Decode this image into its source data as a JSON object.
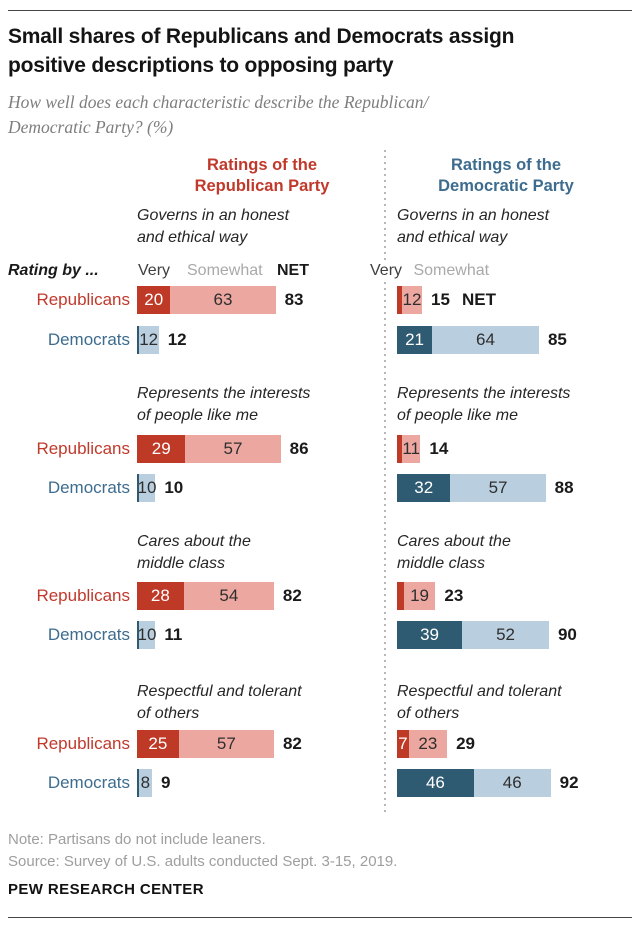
{
  "page": {
    "title_lines": [
      "Small shares of Republicans and Democrats assign",
      "positive descriptions to opposing party"
    ],
    "subtitle_lines": [
      "How well does each characteristic describe the Republican/",
      "Democratic Party? (%)"
    ],
    "note": "Note: Partisans do not include leaners.",
    "source": "Source: Survey of U.S. adults conducted Sept. 3-15, 2019.",
    "brand": "PEW RESEARCH CENTER"
  },
  "labels": {
    "rating_by": "Rating by ...",
    "very": "Very",
    "somewhat": "Somewhat",
    "net": "NET"
  },
  "colors": {
    "republican_dark": "#bf3927",
    "republican_light": "#eca8a0",
    "democrat_dark": "#2e5a72",
    "democrat_light": "#b9cfdf",
    "republican_label": "#c0392b",
    "democrat_label": "#3d6c8e"
  },
  "chart_data": {
    "type": "bar",
    "unit": "%",
    "title": "Small shares of Republicans and Democrats assign positive descriptions to opposing party",
    "subtitle": "How well does each characteristic describe the Republican/Democratic Party? (%)",
    "stack_keys": [
      "very",
      "somewhat"
    ],
    "legend": [
      "Very",
      "Somewhat",
      "NET"
    ],
    "panels": [
      {
        "id": "ratings-of-republican-party",
        "header_lines": [
          "Ratings of the",
          "Republican Party"
        ],
        "sections": [
          {
            "title_lines": [
              "Governs in an honest",
              "and ethical way"
            ],
            "rows": [
              {
                "rater": "Republicans",
                "very": 20,
                "somewhat": 63,
                "net": 83,
                "show_very": true,
                "show_somewhat": true
              },
              {
                "rater": "Democrats",
                "very": 1,
                "somewhat": 12,
                "net": 12,
                "show_very": false,
                "show_somewhat": true
              }
            ]
          },
          {
            "title_lines": [
              "Represents the interests",
              "of people like me"
            ],
            "rows": [
              {
                "rater": "Republicans",
                "very": 29,
                "somewhat": 57,
                "net": 86,
                "show_very": true,
                "show_somewhat": true
              },
              {
                "rater": "Democrats",
                "very": 1,
                "somewhat": 10,
                "net": 10,
                "show_very": false,
                "show_somewhat": true
              }
            ]
          },
          {
            "title_lines": [
              "Cares about the",
              "middle class"
            ],
            "rows": [
              {
                "rater": "Republicans",
                "very": 28,
                "somewhat": 54,
                "net": 82,
                "show_very": true,
                "show_somewhat": true
              },
              {
                "rater": "Democrats",
                "very": 1,
                "somewhat": 10,
                "net": 11,
                "show_very": false,
                "show_somewhat": true
              }
            ]
          },
          {
            "title_lines": [
              "Respectful and tolerant",
              "of others"
            ],
            "rows": [
              {
                "rater": "Republicans",
                "very": 25,
                "somewhat": 57,
                "net": 82,
                "show_very": true,
                "show_somewhat": true
              },
              {
                "rater": "Democrats",
                "very": 1,
                "somewhat": 8,
                "net": 9,
                "show_very": false,
                "show_somewhat": true
              }
            ]
          }
        ]
      },
      {
        "id": "ratings-of-democratic-party",
        "header_lines": [
          "Ratings of the",
          "Democratic Party"
        ],
        "sections": [
          {
            "title_lines": [
              "Governs in an honest",
              "and ethical way"
            ],
            "rows": [
              {
                "rater": "Republicans",
                "very": 3,
                "somewhat": 12,
                "net": 15,
                "show_very": false,
                "show_somewhat": true,
                "net_suffix": "NET"
              },
              {
                "rater": "Democrats",
                "very": 21,
                "somewhat": 64,
                "net": 85,
                "show_very": true,
                "show_somewhat": true
              }
            ]
          },
          {
            "title_lines": [
              "Represents the interests",
              "of people like me"
            ],
            "rows": [
              {
                "rater": "Republicans",
                "very": 3,
                "somewhat": 11,
                "net": 14,
                "show_very": false,
                "show_somewhat": true
              },
              {
                "rater": "Democrats",
                "very": 32,
                "somewhat": 57,
                "net": 88,
                "show_very": true,
                "show_somewhat": true
              }
            ]
          },
          {
            "title_lines": [
              "Cares about the",
              "middle class"
            ],
            "rows": [
              {
                "rater": "Republicans",
                "very": 4,
                "somewhat": 19,
                "net": 23,
                "show_very": false,
                "show_somewhat": true
              },
              {
                "rater": "Democrats",
                "very": 39,
                "somewhat": 52,
                "net": 90,
                "show_very": true,
                "show_somewhat": true
              }
            ]
          },
          {
            "title_lines": [
              "Respectful and tolerant",
              "of others"
            ],
            "rows": [
              {
                "rater": "Republicans",
                "very": 7,
                "somewhat": 23,
                "net": 29,
                "show_very": true,
                "show_somewhat": true
              },
              {
                "rater": "Democrats",
                "very": 46,
                "somewhat": 46,
                "net": 92,
                "show_very": true,
                "show_somewhat": true
              }
            ]
          }
        ]
      }
    ]
  }
}
